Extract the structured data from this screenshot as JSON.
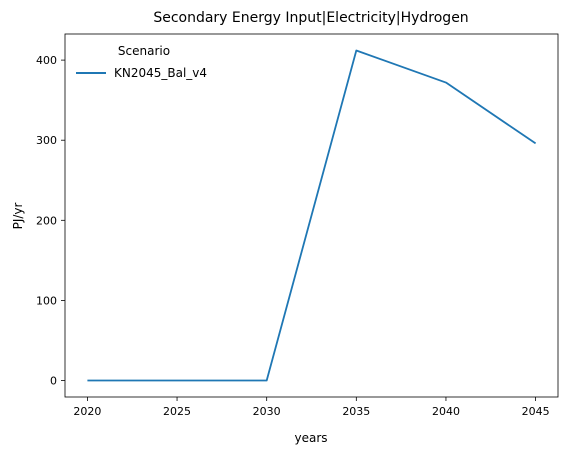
{
  "chart_data": {
    "type": "line",
    "title": "Secondary Energy Input|Electricity|Hydrogen",
    "xlabel": "years",
    "ylabel": "PJ/yr",
    "x": [
      2020,
      2025,
      2030,
      2035,
      2040,
      2045
    ],
    "xticks": [
      2020,
      2025,
      2030,
      2035,
      2040,
      2045
    ],
    "yticks": [
      0,
      100,
      200,
      300,
      400
    ],
    "xlim": [
      2018.75,
      2046.25
    ],
    "ylim": [
      -20.6,
      432.6
    ],
    "grid": false,
    "legend": {
      "title": "Scenario",
      "placement": "top-left"
    },
    "series": [
      {
        "name": "KN2045_Bal_v4",
        "color": "#1f77b4",
        "values": [
          0,
          0,
          0,
          412,
          372,
          296
        ]
      }
    ]
  }
}
